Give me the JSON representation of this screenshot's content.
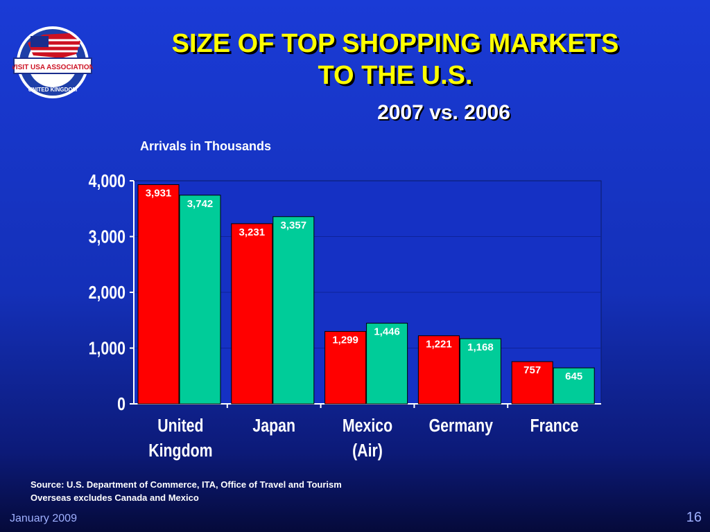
{
  "slide": {
    "title_line1": "SIZE OF TOP SHOPPING MARKETS",
    "title_line2": "TO THE U.S.",
    "subtitle": "2007 vs. 2006",
    "unit_label": "Arrivals in Thousands",
    "source_line1": "Source: U.S. Department of Commerce, ITA, Office of Travel and Tourism",
    "source_line2": "Overseas excludes Canada and Mexico",
    "footer_date": "January 2009",
    "page_number": "16"
  },
  "logo": {
    "banner_text": "VISIT USA ASSOCIATION",
    "ring_text": "UNITED KINGDOM"
  },
  "colors": {
    "series_2007": "#ff0000",
    "series_2006": "#00cc99",
    "title": "#ffff00",
    "plot_background": "#1531c4"
  },
  "chart_data": {
    "type": "bar",
    "categories": [
      [
        "United",
        "Kingdom"
      ],
      [
        "Japan"
      ],
      [
        "Mexico",
        "(Air)"
      ],
      [
        "Germany"
      ],
      [
        "France"
      ]
    ],
    "series": [
      {
        "values": [
          3931,
          3231,
          1299,
          1221,
          757
        ],
        "labels": [
          "3,931",
          "3,231",
          "1,299",
          "1,221",
          "757"
        ]
      },
      {
        "values": [
          3742,
          3357,
          1446,
          1168,
          645
        ],
        "labels": [
          "3,742",
          "3,357",
          "1,446",
          "1,168",
          "645"
        ]
      }
    ],
    "yticks": [
      "0",
      "1,000",
      "2,000",
      "3,000",
      "4,000"
    ],
    "ylim": [
      0,
      4000
    ],
    "grid": true,
    "legend": "none"
  }
}
